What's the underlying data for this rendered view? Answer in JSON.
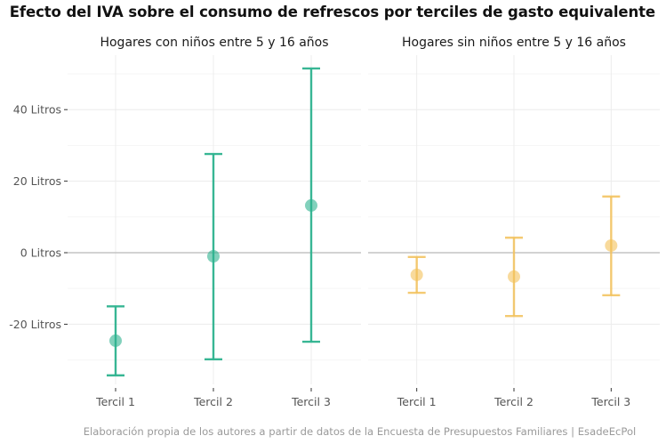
{
  "chart_data": {
    "type": "errorbar",
    "title": "Efecto del IVA sobre el consumo de refrescos por terciles de gasto equivalente",
    "caption": "Elaboración propia de los autores a partir de datos de la Encuesta de Presupuestos Familiares | EsadeEcPol",
    "xlabel": "",
    "ylabel": "",
    "ylim": [
      -38,
      54
    ],
    "yticks": [
      -20,
      0,
      20,
      40
    ],
    "ytick_labels": [
      "-20 Litros",
      "0 Litros",
      "20 Litros",
      "40 Litros"
    ],
    "minor_yticks": [
      -30,
      -10,
      10,
      30,
      50
    ],
    "reference_line": 0,
    "grid": true,
    "categories": [
      "Tercil 1",
      "Tercil 2",
      "Tercil 3"
    ],
    "panels": [
      {
        "name": "Hogares con niños entre 5 y 16 años",
        "color": "#2eb38f",
        "estimates": [
          -24.6,
          -1.0,
          13.2
        ],
        "lower": [
          -34.3,
          -29.8,
          -24.9
        ],
        "upper": [
          -15.0,
          27.6,
          51.5
        ]
      },
      {
        "name": "Hogares sin niños entre 5 y 16 años",
        "color": "#f3c15a",
        "estimates": [
          -6.2,
          -6.7,
          2.0
        ],
        "lower": [
          -11.2,
          -17.7,
          -11.9
        ],
        "upper": [
          -1.2,
          4.2,
          15.7
        ]
      }
    ]
  }
}
